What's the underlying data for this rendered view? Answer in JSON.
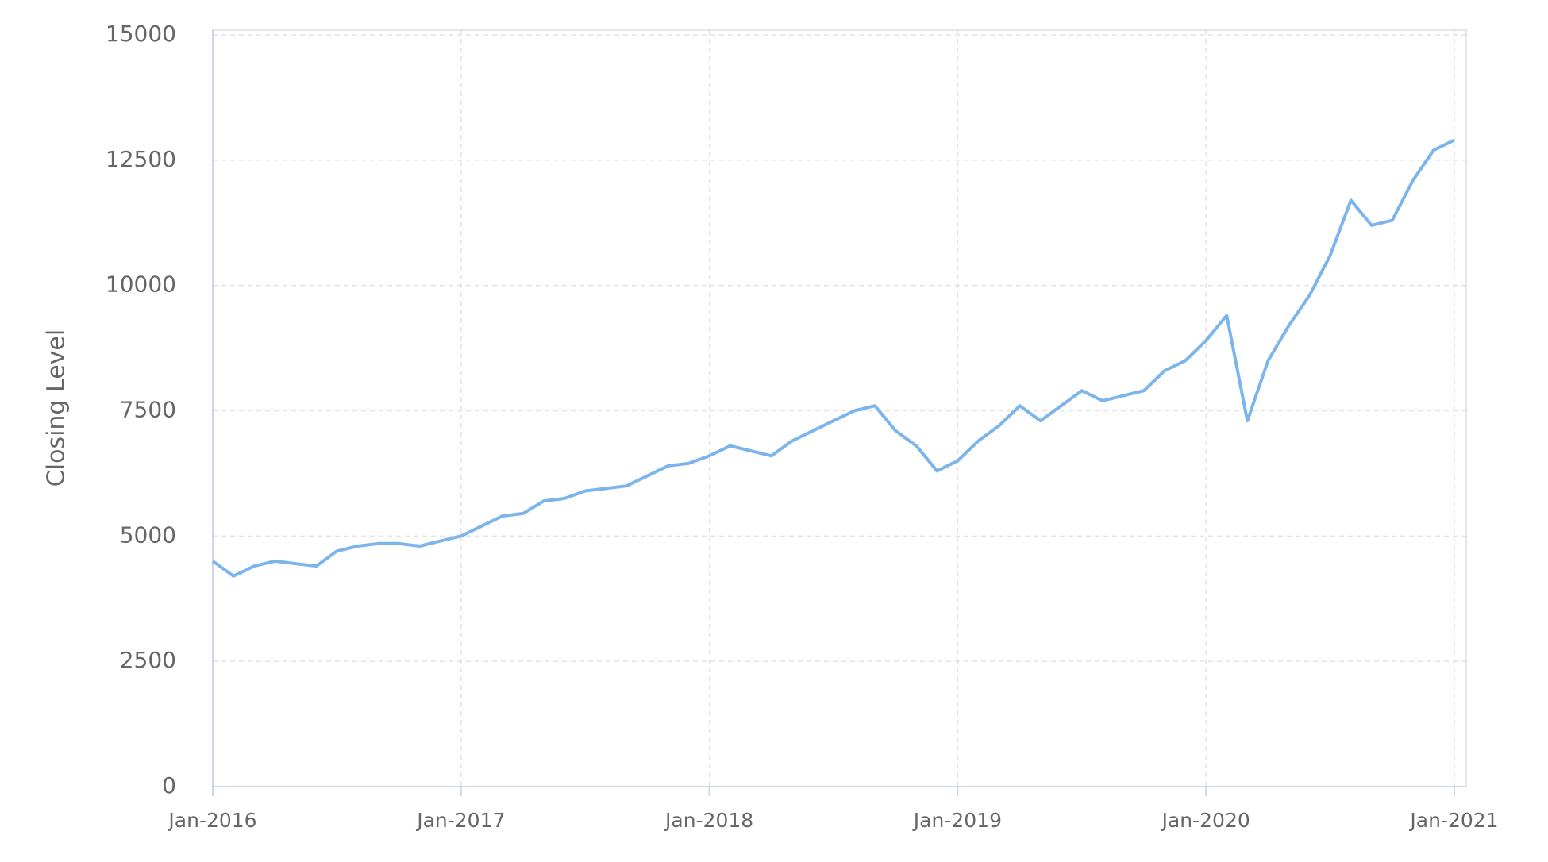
{
  "chart_data": {
    "type": "line",
    "y_label": "Closing Level",
    "x": [
      "2016-01",
      "2016-02",
      "2016-03",
      "2016-04",
      "2016-05",
      "2016-06",
      "2016-07",
      "2016-08",
      "2016-09",
      "2016-10",
      "2016-11",
      "2016-12",
      "2017-01",
      "2017-02",
      "2017-03",
      "2017-04",
      "2017-05",
      "2017-06",
      "2017-07",
      "2017-08",
      "2017-09",
      "2017-10",
      "2017-11",
      "2017-12",
      "2018-01",
      "2018-02",
      "2018-03",
      "2018-04",
      "2018-05",
      "2018-06",
      "2018-07",
      "2018-08",
      "2018-09",
      "2018-10",
      "2018-11",
      "2018-12",
      "2019-01",
      "2019-02",
      "2019-03",
      "2019-04",
      "2019-05",
      "2019-06",
      "2019-07",
      "2019-08",
      "2019-09",
      "2019-10",
      "2019-11",
      "2019-12",
      "2020-01",
      "2020-02",
      "2020-03",
      "2020-04",
      "2020-05",
      "2020-06",
      "2020-07",
      "2020-08",
      "2020-09",
      "2020-10",
      "2020-11",
      "2020-12",
      "2021-01"
    ],
    "values": [
      4500,
      4200,
      4400,
      4500,
      4450,
      4400,
      4700,
      4800,
      4850,
      4850,
      4800,
      4900,
      5000,
      5200,
      5400,
      5450,
      5700,
      5750,
      5900,
      5950,
      6000,
      6200,
      6400,
      6450,
      6600,
      6800,
      6700,
      6600,
      6900,
      7100,
      7300,
      7500,
      7600,
      7100,
      6800,
      6300,
      6500,
      6900,
      7200,
      7600,
      7300,
      7600,
      7900,
      7700,
      7800,
      7900,
      8300,
      8500,
      8900,
      9400,
      7300,
      8500,
      9200,
      9800,
      10600,
      11700,
      11200,
      11300,
      12100,
      12700,
      12900
    ],
    "color": "#7cb5ec",
    "xlim": [
      "2016-01",
      "2021-01"
    ],
    "xticks": [
      {
        "value": "2016-01",
        "label": "Jan-2016"
      },
      {
        "value": "2017-01",
        "label": "Jan-2017"
      },
      {
        "value": "2018-01",
        "label": "Jan-2018"
      },
      {
        "value": "2019-01",
        "label": "Jan-2019"
      },
      {
        "value": "2020-01",
        "label": "Jan-2020"
      },
      {
        "value": "2021-01",
        "label": "Jan-2021"
      }
    ],
    "ylim": [
      0,
      15000
    ],
    "yticks": [
      0,
      2500,
      5000,
      7500,
      10000,
      12500,
      15000
    ],
    "grid": true
  }
}
